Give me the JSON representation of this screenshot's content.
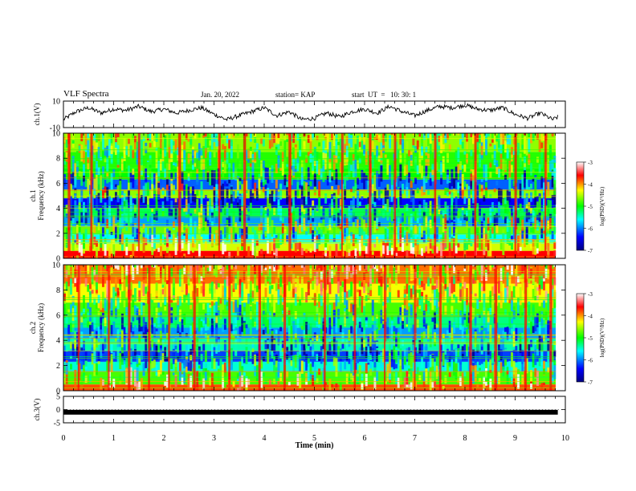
{
  "header": {
    "title": "VLF Spectra",
    "date": "Jan. 20, 2022",
    "station": "station= KAP",
    "start": "start  UT  =   10: 30: 1"
  },
  "chart_data": [
    {
      "type": "line",
      "name": "ch.1 waveform",
      "ylabel": "ch.1(V)",
      "ylim": [
        -10,
        10
      ],
      "yticks": [
        "10",
        "-10"
      ],
      "x_minutes": [
        0,
        0.25,
        0.5,
        0.75,
        1.0,
        1.25,
        1.5,
        1.75,
        2.0,
        2.25,
        2.5,
        2.75,
        3.0,
        3.25,
        3.5,
        3.75,
        4.0,
        4.25,
        4.5,
        4.75,
        5.0,
        5.25,
        5.5,
        5.75,
        6.0,
        6.25,
        6.5,
        6.75,
        7.0,
        7.25,
        7.5,
        7.75,
        8.0,
        8.25,
        8.5,
        8.75,
        9.0,
        9.25,
        9.5,
        9.75,
        9.85
      ],
      "y": [
        -4,
        2,
        5,
        1,
        4,
        3,
        6,
        2,
        4,
        1,
        3,
        5,
        0,
        -4,
        -1,
        2,
        5,
        -1,
        2,
        -4,
        -3,
        1,
        -2,
        2,
        4,
        1,
        6,
        2,
        -1,
        3,
        6,
        5,
        7,
        4,
        3,
        5,
        0,
        -3,
        1,
        -4,
        -2
      ]
    },
    {
      "type": "heatmap",
      "name": "ch.1 spectrogram",
      "ylabel": "ch.1\nFrequency (kHz)",
      "ylim": [
        0,
        10
      ],
      "yticks": [
        "0",
        "2",
        "4",
        "6",
        "8",
        "10"
      ],
      "colorbar": {
        "label": "log(PSD)(V²/Hz)",
        "range": [
          -7,
          -3
        ],
        "ticks": [
          "-3",
          "-4",
          "-5",
          "-6",
          "-7"
        ]
      },
      "frequency_bands_khz": [
        {
          "from": 0.0,
          "to": 0.6,
          "level": -3.6
        },
        {
          "from": 0.6,
          "to": 1.2,
          "level": -4.4
        },
        {
          "from": 1.2,
          "to": 1.9,
          "level": -5.6
        },
        {
          "from": 1.9,
          "to": 2.5,
          "level": -4.7
        },
        {
          "from": 2.5,
          "to": 3.4,
          "level": -5.9
        },
        {
          "from": 3.4,
          "to": 4.0,
          "level": -5.2
        },
        {
          "from": 4.0,
          "to": 4.8,
          "level": -6.4
        },
        {
          "from": 4.8,
          "to": 5.5,
          "level": -4.6
        },
        {
          "from": 5.5,
          "to": 6.3,
          "level": -6.1
        },
        {
          "from": 6.3,
          "to": 7.2,
          "level": -5.0
        },
        {
          "from": 7.2,
          "to": 8.5,
          "level": -4.9
        },
        {
          "from": 8.5,
          "to": 10.0,
          "level": -4.6
        }
      ],
      "bursts_min": [
        0.1,
        0.55,
        1.5,
        2.3,
        3.1,
        3.6,
        4.5,
        5.55,
        6.1,
        6.6,
        7.4,
        8.2,
        9.0,
        9.6
      ]
    },
    {
      "type": "heatmap",
      "name": "ch.2 spectrogram",
      "ylabel": "ch.2\nFrequency (kHz)",
      "ylim": [
        0,
        10
      ],
      "yticks": [
        "0",
        "2",
        "4",
        "6",
        "8",
        "10"
      ],
      "colorbar": {
        "label": "log(PSD)(V²/Hz)",
        "range": [
          -7,
          -3
        ],
        "ticks": [
          "-3",
          "-4",
          "-5",
          "-6",
          "-7"
        ]
      },
      "frequency_bands_khz": [
        {
          "from": 0.0,
          "to": 0.5,
          "level": -3.8
        },
        {
          "from": 0.5,
          "to": 1.5,
          "level": -4.8
        },
        {
          "from": 1.5,
          "to": 2.3,
          "level": -5.5
        },
        {
          "from": 2.3,
          "to": 3.2,
          "level": -6.2
        },
        {
          "from": 3.2,
          "to": 4.2,
          "level": -5.4
        },
        {
          "from": 4.2,
          "to": 5.0,
          "level": -5.9
        },
        {
          "from": 5.0,
          "to": 6.0,
          "level": -5.3
        },
        {
          "from": 6.0,
          "to": 7.0,
          "level": -4.8
        },
        {
          "from": 7.0,
          "to": 8.5,
          "level": -4.3
        },
        {
          "from": 8.5,
          "to": 10.0,
          "level": -3.9
        }
      ],
      "bursts_min": [
        0.3,
        0.9,
        1.3,
        1.7,
        2.1,
        2.6,
        3.3,
        3.9,
        4.4,
        5.2,
        5.8,
        6.4,
        7.0,
        7.5,
        8.1,
        8.6,
        9.2,
        9.7
      ]
    },
    {
      "type": "line",
      "name": "ch.3 waveform",
      "ylabel": "ch.3(V)",
      "ylim": [
        -5,
        5
      ],
      "yticks": [
        "5",
        "0",
        "-5"
      ],
      "x_minutes": [
        0,
        9.85
      ],
      "y": [
        -1,
        -1
      ]
    }
  ],
  "x_axis": {
    "label": "Time (min)",
    "range": [
      0,
      10
    ],
    "ticks": [
      "0",
      "1",
      "2",
      "3",
      "4",
      "5",
      "6",
      "7",
      "8",
      "9",
      "10"
    ]
  }
}
